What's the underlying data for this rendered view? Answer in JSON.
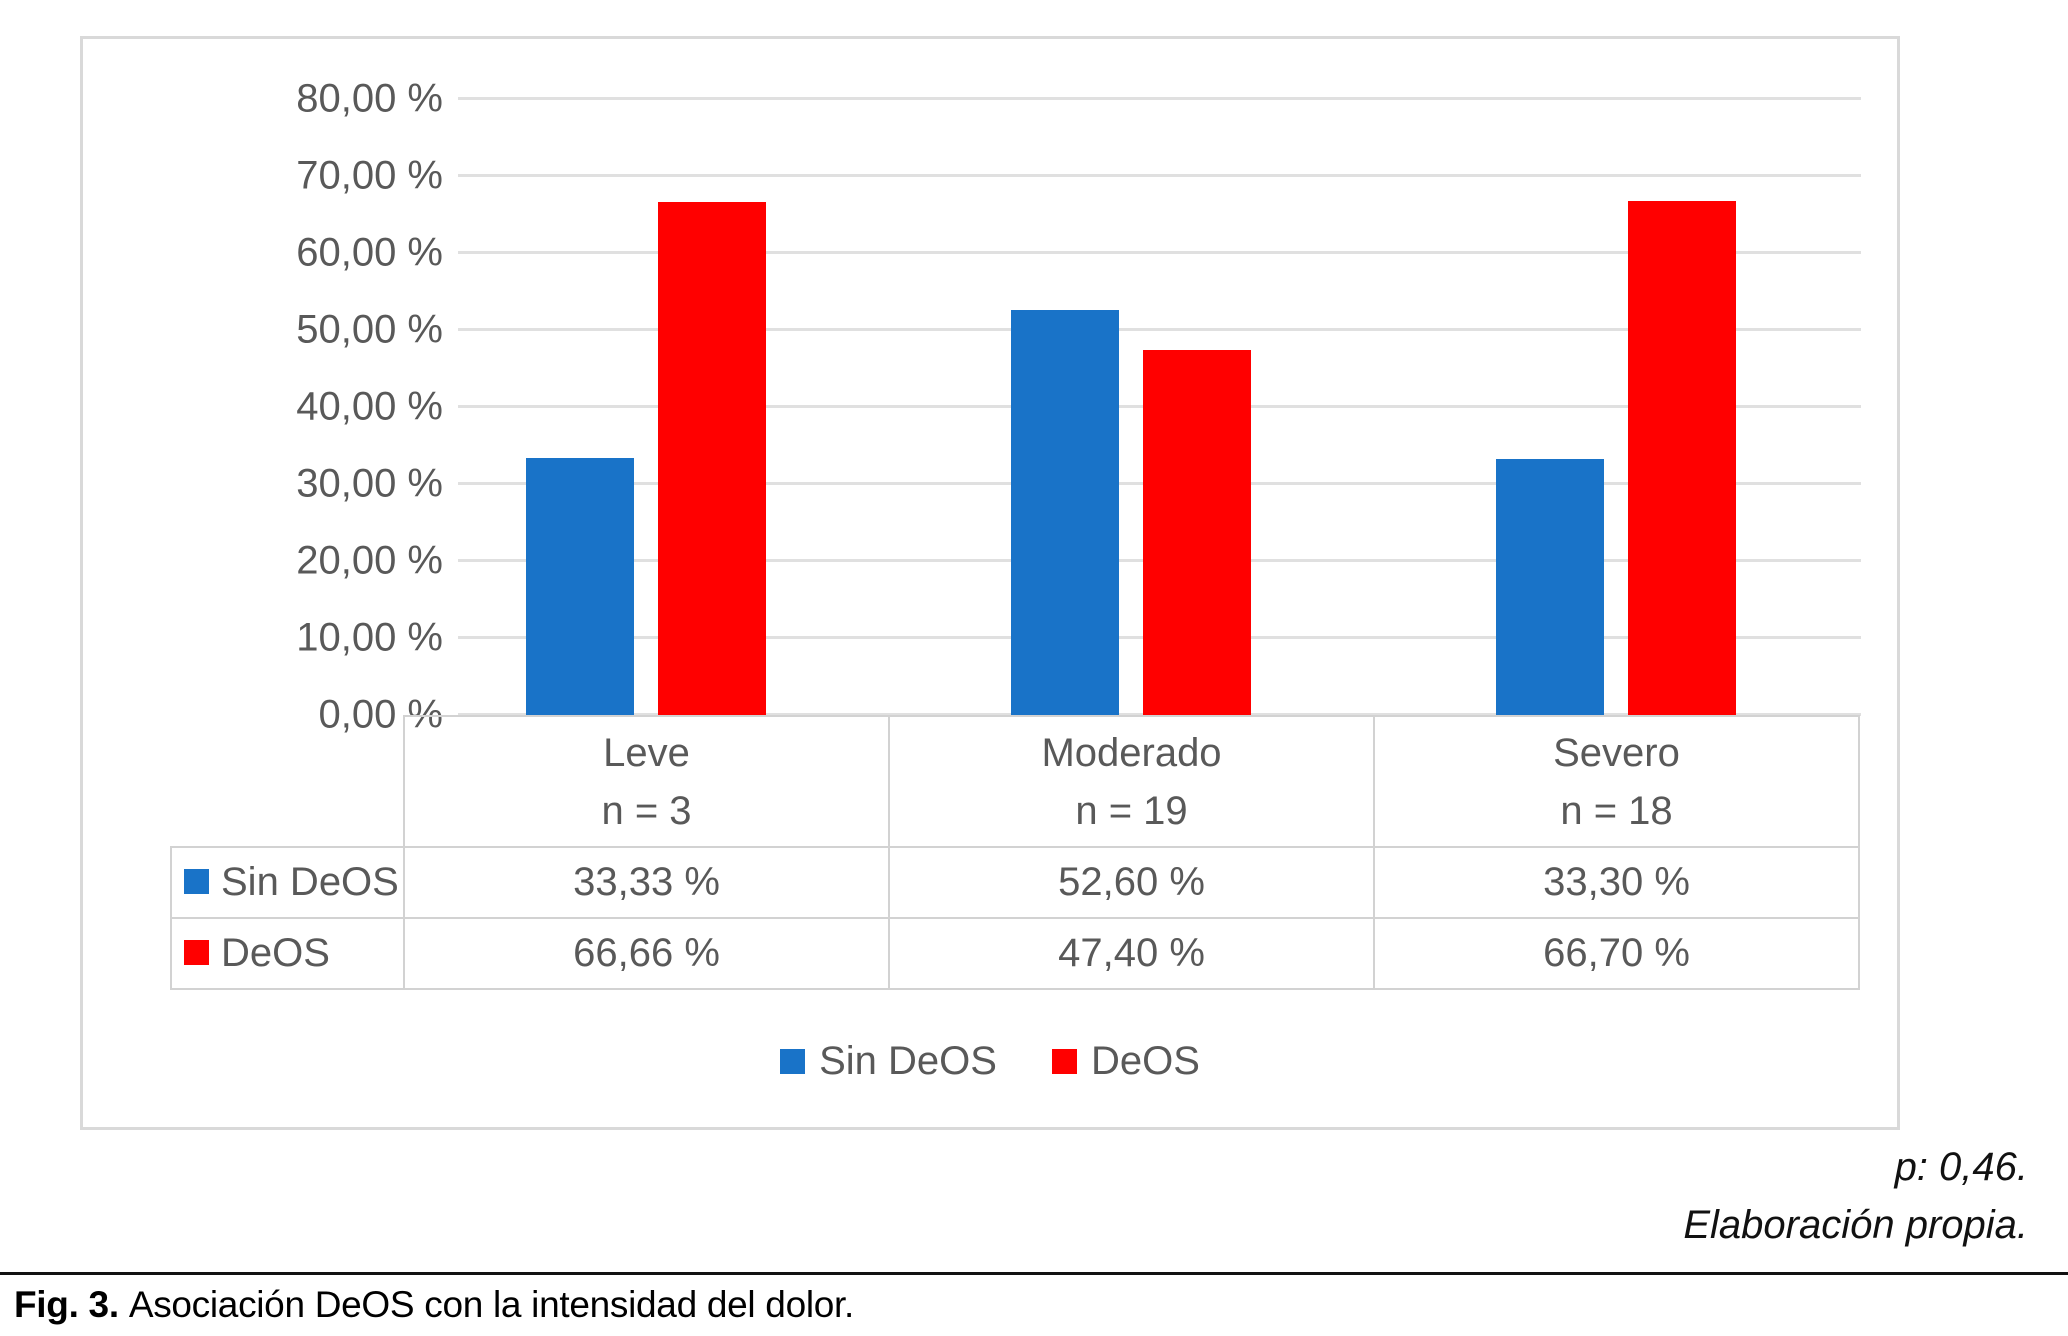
{
  "chart_data": {
    "type": "bar",
    "title": "",
    "xlabel": "",
    "ylabel": "",
    "ylim": [
      0,
      80
    ],
    "y_tick_step": 10,
    "grid": true,
    "legend_position": "bottom",
    "y_tick_labels": [
      "80,00 %",
      "70,00 %",
      "60,00 %",
      "50,00 %",
      "40,00 %",
      "30,00 %",
      "20,00 %",
      "10,00 %",
      "0,00 %"
    ],
    "categories": [
      "Leve",
      "Moderado",
      "Severo"
    ],
    "category_sublabels": [
      "n = 3",
      "n = 19",
      "n = 18"
    ],
    "series": [
      {
        "name": "Sin DeOS",
        "color": "#1973c8",
        "values": [
          33.33,
          52.6,
          33.3
        ],
        "value_labels": [
          "33,33 %",
          "52,60 %",
          "33,30 %"
        ]
      },
      {
        "name": "DeOS",
        "color": "#ff0000",
        "values": [
          66.66,
          47.4,
          66.7
        ],
        "value_labels": [
          "66,66 %",
          "47,40 %",
          "66,70 %"
        ]
      }
    ]
  },
  "footnotes": {
    "p_value": "p: 0,46.",
    "source": "Elaboración propia."
  },
  "caption": {
    "label": "Fig. 3.",
    "text": "Asociación DeOS con la intensidad del dolor."
  }
}
